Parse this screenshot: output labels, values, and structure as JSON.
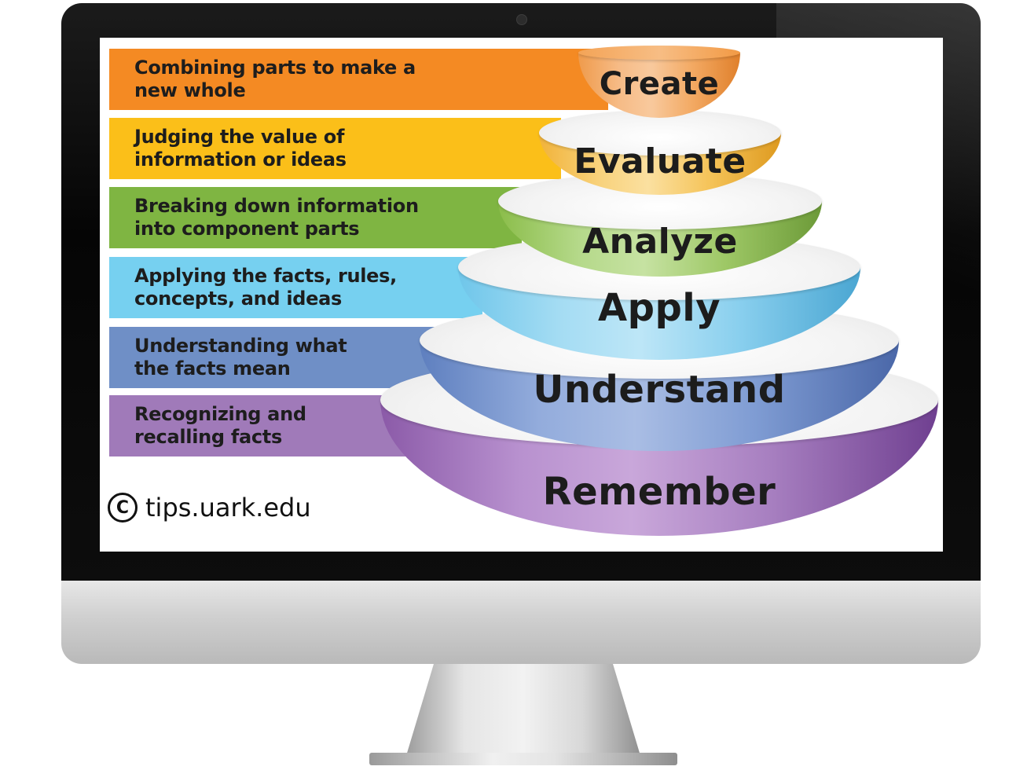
{
  "screen": {
    "levels": [
      {
        "id": "create",
        "label": "Create",
        "description": "Combining parts to make a\nnew whole",
        "color": "#f48a23"
      },
      {
        "id": "evaluate",
        "label": "Evaluate",
        "description": "Judging the value of\ninformation or ideas",
        "color": "#fbbf19"
      },
      {
        "id": "analyze",
        "label": "Analyze",
        "description": "Breaking down information\ninto component parts",
        "color": "#7fb542"
      },
      {
        "id": "apply",
        "label": "Apply",
        "description": "Applying the facts, rules,\nconcepts, and ideas",
        "color": "#76d0f0"
      },
      {
        "id": "understand",
        "label": "Understand",
        "description": "Understanding what\nthe facts mean",
        "color": "#6f8fc6"
      },
      {
        "id": "remember",
        "label": "Remember",
        "description": "Recognizing and\nrecalling facts",
        "color": "#a07ab9"
      }
    ],
    "copyright": {
      "symbol": "C",
      "text": "tips.uark.edu"
    }
  },
  "icons": {
    "monitor": "desktop-monitor-icon",
    "camera": "webcam-icon",
    "copyright": "copyright-icon"
  }
}
